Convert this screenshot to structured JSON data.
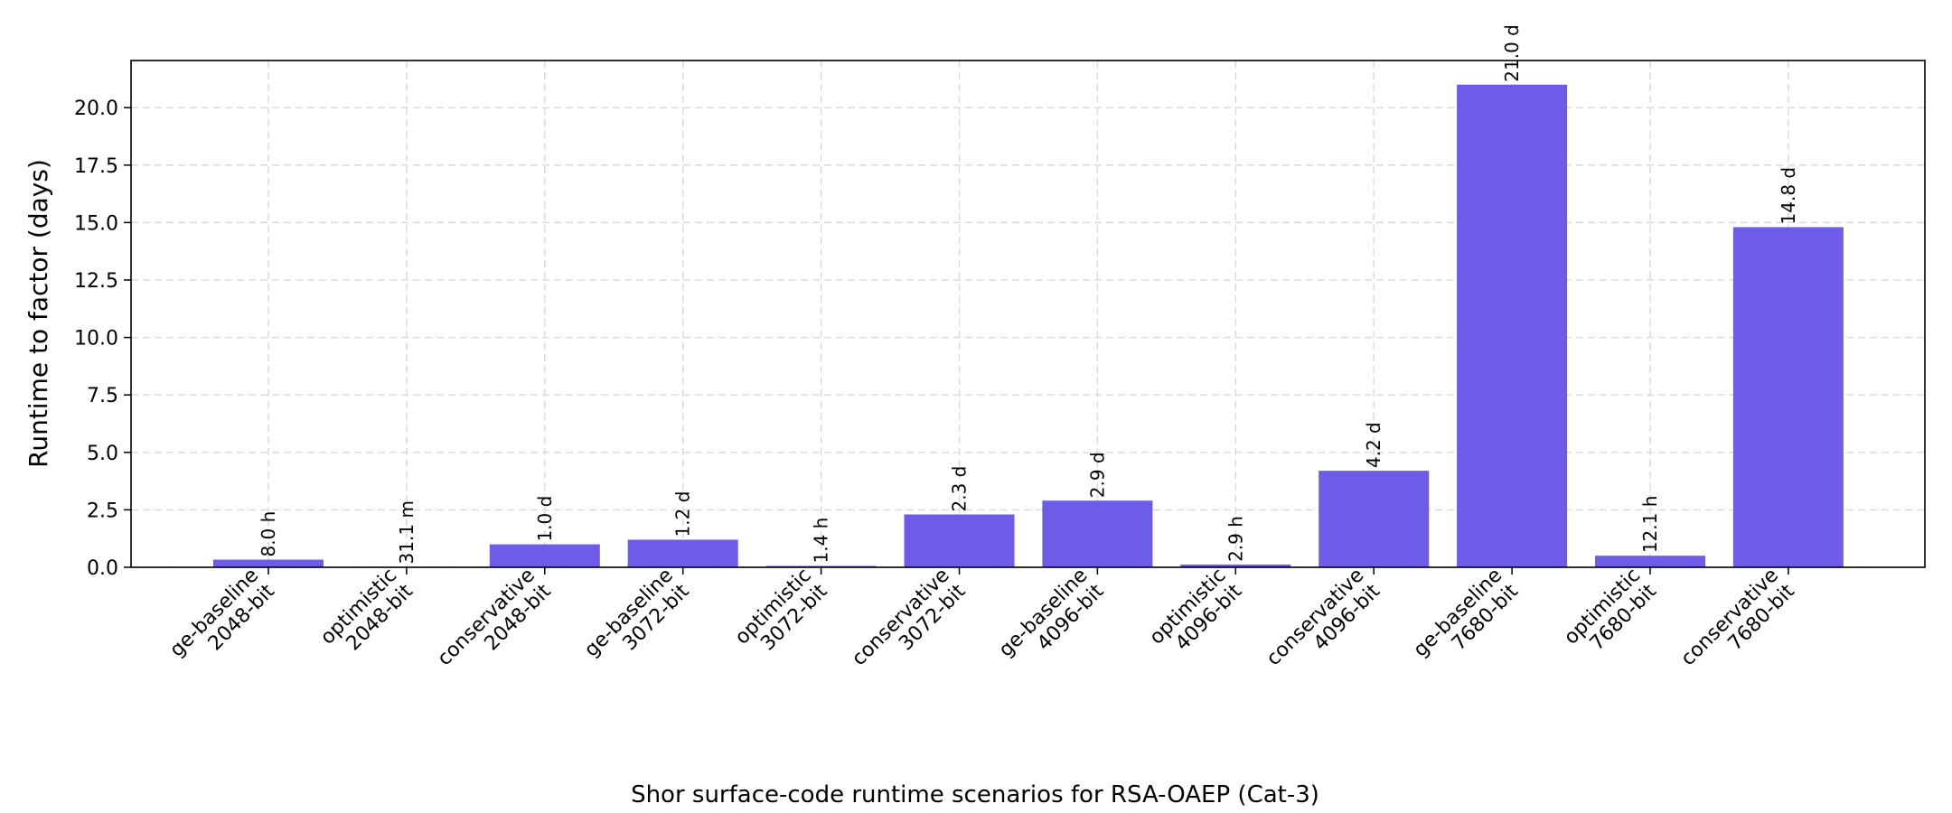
{
  "chart_data": {
    "type": "bar",
    "title": "",
    "xlabel": "",
    "ylabel": "Runtime to factor (days)",
    "caption": "Shor surface-code runtime scenarios for RSA-OAEP (Cat-3)",
    "categories": [
      [
        "ge-baseline",
        "2048-bit"
      ],
      [
        "optimistic",
        "2048-bit"
      ],
      [
        "conservative",
        "2048-bit"
      ],
      [
        "ge-baseline",
        "3072-bit"
      ],
      [
        "optimistic",
        "3072-bit"
      ],
      [
        "conservative",
        "3072-bit"
      ],
      [
        "ge-baseline",
        "4096-bit"
      ],
      [
        "optimistic",
        "4096-bit"
      ],
      [
        "conservative",
        "4096-bit"
      ],
      [
        "ge-baseline",
        "7680-bit"
      ],
      [
        "optimistic",
        "7680-bit"
      ],
      [
        "conservative",
        "7680-bit"
      ]
    ],
    "values": [
      0.333,
      0.0216,
      1.0,
      1.2,
      0.0583,
      2.3,
      2.9,
      0.121,
      4.2,
      21.0,
      0.504,
      14.8
    ],
    "data_labels": [
      "8.0 h",
      "31.1 m",
      "1.0 d",
      "1.2 d",
      "1.4 h",
      "2.3 d",
      "2.9 d",
      "2.9 h",
      "4.2 d",
      "21.0 d",
      "12.1 h",
      "14.8 d"
    ],
    "ylim": [
      0,
      22.05
    ],
    "yticks": [
      0.0,
      2.5,
      5.0,
      7.5,
      10.0,
      12.5,
      15.0,
      17.5,
      20.0
    ],
    "ytick_labels": [
      "0.0",
      "2.5",
      "5.0",
      "7.5",
      "10.0",
      "12.5",
      "15.0",
      "17.5",
      "20.0"
    ],
    "grid": true,
    "colors": {
      "bar": "#6c5ce7",
      "grid": "#d9d9d9",
      "axis": "#000000"
    }
  }
}
